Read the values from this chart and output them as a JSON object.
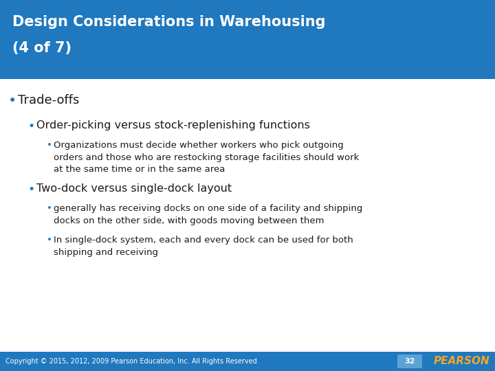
{
  "title_line1": "Design Considerations in Warehousing",
  "title_line2": "(4 of 7)",
  "title_bg_color": "#2078BE",
  "title_text_color": "#FFFFFF",
  "body_bg_color": "#FFFFFF",
  "body_text_color": "#1a1a1a",
  "bullet_color": "#2078BE",
  "footer_bg_color": "#2078BE",
  "footer_text_color": "#FFFFFF",
  "footer_copyright": "Copyright © 2015, 2012, 2009 Pearson Education, Inc. All Rights Reserved",
  "footer_page": "32",
  "footer_page_bg": "#5BA3D4",
  "footer_logo": "PEARSON",
  "bullet1": "Trade-offs",
  "bullet2": "Order-picking versus stock-replenishing functions",
  "bullet3": "Organizations must decide whether workers who pick outgoing\norders and those who are restocking storage facilities should work\nat the same time or in the same area",
  "bullet4": "Two-dock versus single-dock layout",
  "bullet5": "generally has receiving docks on one side of a facility and shipping\ndocks on the other side, with goods moving between them",
  "bullet6": "In single-dock system, each and every dock can be used for both\nshipping and receiving",
  "title_fontsize": 15,
  "b1_fontsize": 13,
  "b2_fontsize": 11.5,
  "b3_fontsize": 9.5,
  "b4_fontsize": 11.5,
  "b5_fontsize": 9.5,
  "b6_fontsize": 9.5,
  "footer_fontsize": 7,
  "page_num_fontsize": 8,
  "logo_fontsize": 11
}
